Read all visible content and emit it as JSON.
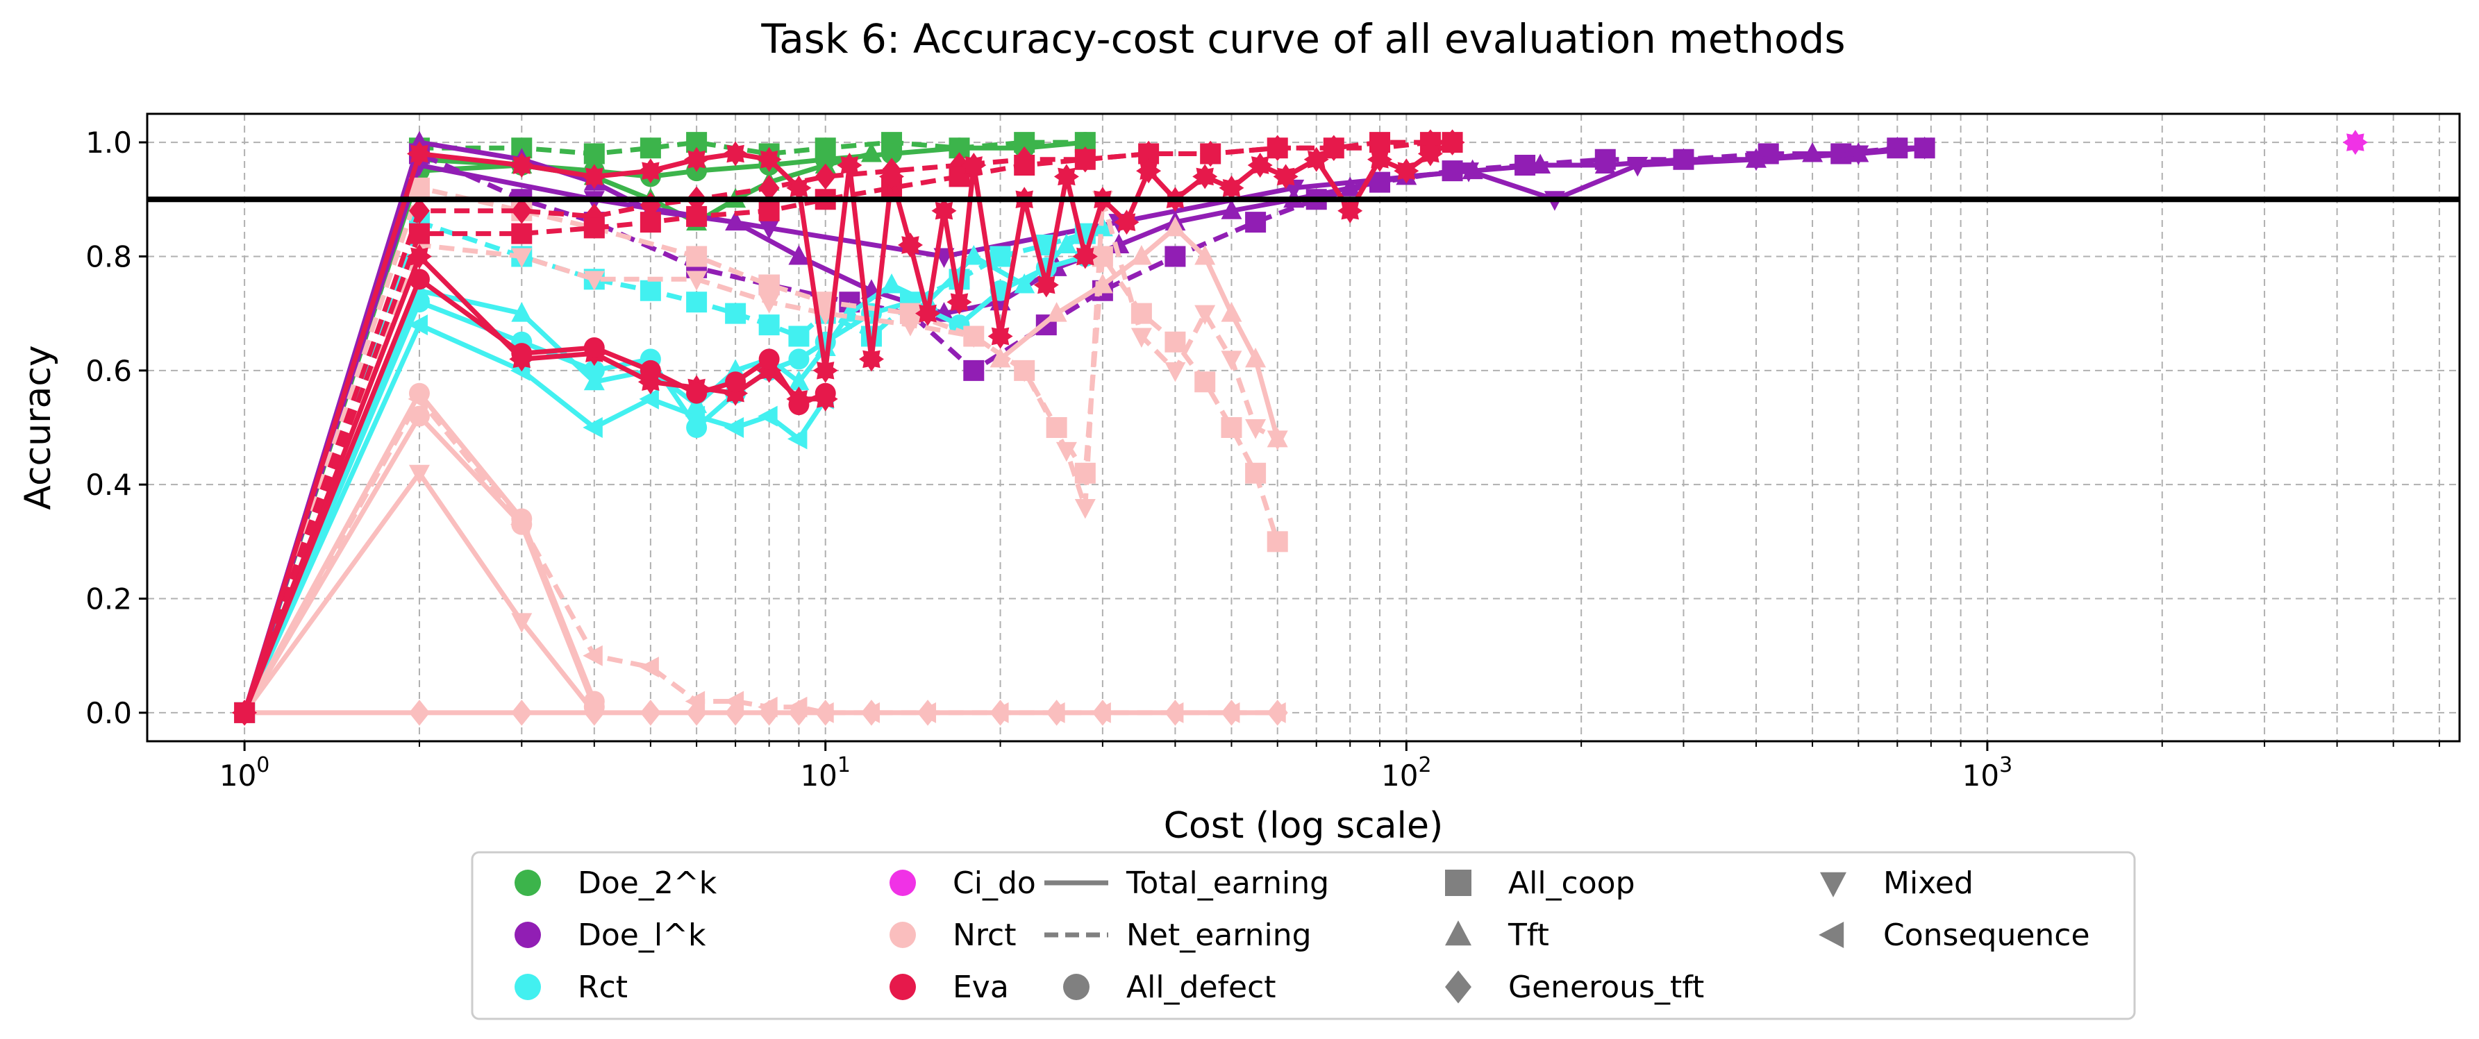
{
  "chart_data": {
    "type": "line",
    "title": "Task 6: Accuracy-cost curve of all evaluation methods",
    "xlabel": "Cost (log scale)",
    "ylabel": "Accuracy",
    "xscale": "log",
    "xlim": [
      0.68,
      6500
    ],
    "ylim": [
      -0.05,
      1.05
    ],
    "x_ticks": [
      {
        "value": 1,
        "label": "10",
        "exp": "0"
      },
      {
        "value": 10,
        "label": "10",
        "exp": "1"
      },
      {
        "value": 100,
        "label": "10",
        "exp": "2"
      },
      {
        "value": 1000,
        "label": "10",
        "exp": "3"
      }
    ],
    "y_ticks": [
      {
        "value": 0.0,
        "label": "0.0"
      },
      {
        "value": 0.2,
        "label": "0.2"
      },
      {
        "value": 0.4,
        "label": "0.4"
      },
      {
        "value": 0.6,
        "label": "0.6"
      },
      {
        "value": 0.8,
        "label": "0.8"
      },
      {
        "value": 1.0,
        "label": "1.0"
      }
    ],
    "grid": true,
    "threshold_line": {
      "y": 0.9,
      "color": "#000000"
    },
    "methods": [
      {
        "name": "Doe_2^k",
        "color": "#3cb44b"
      },
      {
        "name": "Doe_l^k",
        "color": "#911eb4"
      },
      {
        "name": "Rct",
        "color": "#42f0f0"
      },
      {
        "name": "Ci_do",
        "color": "#f032e6"
      },
      {
        "name": "Nrct",
        "color": "#fabebe"
      },
      {
        "name": "Eva",
        "color": "#e6194b"
      }
    ],
    "line_styles": [
      {
        "name": "Total_earning",
        "style": "solid"
      },
      {
        "name": "Net_earning",
        "style": "dashed"
      }
    ],
    "strategies": [
      {
        "name": "All_defect",
        "marker": "circle"
      },
      {
        "name": "All_coop",
        "marker": "square"
      },
      {
        "name": "Tft",
        "marker": "triangle-up"
      },
      {
        "name": "Generous_tft",
        "marker": "diamond"
      },
      {
        "name": "Mixed",
        "marker": "triangle-down"
      },
      {
        "name": "Consequence",
        "marker": "triangle-left"
      }
    ],
    "series": [
      {
        "name": "Doe_2^k Net_earning",
        "method": "Doe_2^k",
        "style": "dashed",
        "marker": "square",
        "x": [
          1,
          2,
          3,
          4,
          5,
          6,
          8,
          10,
          13,
          17,
          22,
          28
        ],
        "y": [
          0,
          0.99,
          0.99,
          0.98,
          0.99,
          1.0,
          0.98,
          0.99,
          1.0,
          0.99,
          1.0,
          1.0
        ]
      },
      {
        "name": "Doe_2^k Total_earning",
        "method": "Doe_2^k",
        "style": "solid",
        "marker": "circle",
        "x": [
          1,
          2,
          3,
          4,
          5,
          6,
          8,
          10,
          13,
          17,
          22,
          28
        ],
        "y": [
          0,
          0.95,
          0.96,
          0.95,
          0.94,
          0.95,
          0.96,
          0.97,
          0.98,
          0.99,
          0.99,
          1.0
        ]
      },
      {
        "name": "Doe_2^k Total_earning (Tft)",
        "method": "Doe_2^k",
        "style": "solid",
        "marker": "triangle-up",
        "x": [
          1,
          2,
          3,
          4,
          5,
          6,
          7,
          8,
          10,
          12
        ],
        "y": [
          0,
          0.97,
          0.96,
          0.94,
          0.9,
          0.86,
          0.9,
          0.93,
          0.96,
          0.98
        ]
      },
      {
        "name": "Doe_l^k Total_earning",
        "method": "Doe_l^k",
        "style": "solid",
        "marker": "triangle-up",
        "x": [
          1,
          2,
          3,
          4,
          5,
          7,
          9,
          12,
          16,
          20,
          25,
          32,
          40,
          50,
          64,
          80,
          100,
          130,
          170,
          220,
          300,
          400,
          500,
          600,
          700,
          780
        ],
        "y": [
          0,
          1.0,
          0.97,
          0.93,
          0.88,
          0.86,
          0.8,
          0.74,
          0.7,
          0.72,
          0.78,
          0.82,
          0.86,
          0.88,
          0.9,
          0.92,
          0.94,
          0.95,
          0.96,
          0.96,
          0.97,
          0.97,
          0.98,
          0.98,
          0.99,
          0.99
        ]
      },
      {
        "name": "Doe_l^k Net_earning",
        "method": "Doe_l^k",
        "style": "dashed",
        "marker": "square",
        "x": [
          1,
          2,
          3,
          4,
          6,
          8,
          11,
          14,
          18,
          24,
          30,
          40,
          55,
          70,
          90,
          120,
          160,
          220,
          300,
          420,
          560,
          700,
          780
        ],
        "y": [
          0,
          0.98,
          0.9,
          0.86,
          0.78,
          0.75,
          0.72,
          0.7,
          0.6,
          0.68,
          0.74,
          0.8,
          0.86,
          0.9,
          0.93,
          0.95,
          0.96,
          0.97,
          0.97,
          0.98,
          0.98,
          0.99,
          0.99
        ]
      },
      {
        "name": "Doe_l^k Total_earning (Mixed)",
        "method": "Doe_l^k",
        "style": "solid",
        "marker": "triangle-down",
        "x": [
          1,
          2,
          4,
          8,
          16,
          32,
          64,
          128,
          180,
          250,
          400,
          600,
          780
        ],
        "y": [
          0,
          0.96,
          0.9,
          0.85,
          0.8,
          0.86,
          0.92,
          0.95,
          0.9,
          0.96,
          0.97,
          0.98,
          0.99
        ]
      },
      {
        "name": "Rct Total_earning",
        "method": "Rct",
        "style": "solid",
        "marker": "triangle-left",
        "x": [
          1,
          2,
          3,
          4,
          5,
          6,
          7,
          8,
          9,
          10
        ],
        "y": [
          0,
          0.68,
          0.6,
          0.5,
          0.55,
          0.52,
          0.5,
          0.52,
          0.48,
          0.55
        ]
      },
      {
        "name": "Rct Total_earning (All_defect)",
        "method": "Rct",
        "style": "solid",
        "marker": "circle",
        "x": [
          1,
          2,
          3,
          4,
          5,
          6,
          7,
          8,
          9,
          10,
          12,
          14,
          17,
          20,
          24,
          28
        ],
        "y": [
          0,
          0.72,
          0.65,
          0.6,
          0.62,
          0.5,
          0.56,
          0.6,
          0.62,
          0.65,
          0.7,
          0.72,
          0.68,
          0.74,
          0.78,
          0.8
        ]
      },
      {
        "name": "Rct Net_earning",
        "method": "Rct",
        "style": "dashed",
        "marker": "square",
        "x": [
          1,
          2,
          3,
          4,
          5,
          6,
          7,
          8,
          9,
          10,
          12,
          14,
          17,
          20,
          24,
          28
        ],
        "y": [
          0,
          0.86,
          0.8,
          0.76,
          0.74,
          0.72,
          0.7,
          0.68,
          0.66,
          0.7,
          0.66,
          0.72,
          0.76,
          0.8,
          0.82,
          0.84
        ]
      },
      {
        "name": "Rct Total_earning (Tft)",
        "method": "Rct",
        "style": "solid",
        "marker": "triangle-up",
        "x": [
          1,
          2,
          3,
          4,
          5,
          6,
          7,
          8,
          9,
          10,
          11,
          13,
          15,
          18,
          22,
          26,
          30
        ],
        "y": [
          0,
          0.74,
          0.7,
          0.58,
          0.6,
          0.54,
          0.6,
          0.62,
          0.58,
          0.64,
          0.7,
          0.75,
          0.72,
          0.8,
          0.75,
          0.82,
          0.85
        ]
      },
      {
        "name": "Ci_do",
        "method": "Ci_do",
        "style": "solid",
        "marker": "star",
        "x": [
          4300
        ],
        "y": [
          1.0
        ]
      },
      {
        "name": "Nrct Total_earning (All_defect)",
        "method": "Nrct",
        "style": "solid",
        "marker": "circle",
        "x": [
          1,
          2,
          3,
          4
        ],
        "y": [
          0,
          0.56,
          0.34,
          0.02
        ]
      },
      {
        "name": "Nrct Total_earning (Tft)",
        "method": "Nrct",
        "style": "solid",
        "marker": "triangle-down",
        "x": [
          1,
          2,
          3,
          4
        ],
        "y": [
          0,
          0.42,
          0.16,
          0.0
        ]
      },
      {
        "name": "Nrct Total_earning",
        "method": "Nrct",
        "style": "solid",
        "marker": "circle",
        "x": [
          1,
          2,
          3,
          4
        ],
        "y": [
          0,
          0.52,
          0.33,
          0.01
        ]
      },
      {
        "name": "Nrct Net_earning (Consequence)",
        "method": "Nrct",
        "style": "dashed",
        "marker": "triangle-left",
        "x": [
          1,
          2,
          3,
          4,
          5,
          6,
          7,
          8,
          9,
          10,
          12,
          15,
          20,
          25,
          30,
          40,
          50,
          60
        ],
        "y": [
          0,
          0.55,
          0.33,
          0.1,
          0.08,
          0.02,
          0.02,
          0.01,
          0.01,
          0.0,
          0.0,
          0.0,
          0.0,
          0.0,
          0.0,
          0.0,
          0.0,
          0.0
        ]
      },
      {
        "name": "Nrct Total_earning (Generous_tft)",
        "method": "Nrct",
        "style": "solid",
        "marker": "diamond",
        "x": [
          1,
          2,
          3,
          4,
          5,
          6,
          7,
          8,
          9,
          10,
          12,
          15,
          20,
          25,
          30,
          40,
          50,
          60
        ],
        "y": [
          0,
          0.0,
          0.0,
          0.0,
          0.0,
          0.0,
          0.0,
          0.0,
          0.0,
          0.0,
          0.0,
          0.0,
          0.0,
          0.0,
          0.0,
          0.0,
          0.0,
          0.0
        ]
      },
      {
        "name": "Nrct Net_earning (All_coop)",
        "method": "Nrct",
        "style": "dashed",
        "marker": "square",
        "x": [
          1,
          2,
          3,
          4,
          6,
          8,
          10,
          14,
          18,
          22,
          25,
          28,
          30,
          35,
          40,
          45,
          50,
          55,
          60
        ],
        "y": [
          0,
          0.92,
          0.88,
          0.85,
          0.8,
          0.75,
          0.72,
          0.7,
          0.66,
          0.6,
          0.5,
          0.42,
          0.8,
          0.7,
          0.65,
          0.58,
          0.5,
          0.42,
          0.3
        ]
      },
      {
        "name": "Nrct Net_earning (Mixed)",
        "method": "Nrct",
        "style": "dashed",
        "marker": "triangle-down",
        "x": [
          1,
          2,
          3,
          4,
          6,
          8,
          10,
          14,
          18,
          22,
          26,
          28,
          30,
          35,
          40,
          45,
          50,
          55,
          60
        ],
        "y": [
          0,
          0.82,
          0.8,
          0.76,
          0.76,
          0.72,
          0.7,
          0.68,
          0.66,
          0.6,
          0.46,
          0.36,
          0.9,
          0.66,
          0.6,
          0.7,
          0.62,
          0.5,
          0.48
        ]
      },
      {
        "name": "Nrct Total_earning (Tft late)",
        "method": "Nrct",
        "style": "solid",
        "marker": "triangle-up",
        "x": [
          20,
          25,
          30,
          35,
          40,
          45,
          50,
          55,
          60
        ],
        "y": [
          0.62,
          0.7,
          0.75,
          0.8,
          0.85,
          0.8,
          0.7,
          0.62,
          0.48
        ]
      },
      {
        "name": "Eva Total_earning",
        "method": "Eva",
        "style": "solid",
        "marker": "star",
        "x": [
          1,
          2,
          3,
          4,
          5,
          6,
          7,
          8,
          9,
          10
        ],
        "y": [
          0,
          0.8,
          0.62,
          0.63,
          0.58,
          0.57,
          0.56,
          0.6,
          0.55,
          0.55
        ]
      },
      {
        "name": "Eva Total_earning (All_defect)",
        "method": "Eva",
        "style": "solid",
        "marker": "circle",
        "x": [
          1,
          2,
          3,
          4,
          5,
          6,
          7,
          8,
          9,
          10
        ],
        "y": [
          0,
          0.76,
          0.63,
          0.64,
          0.6,
          0.56,
          0.58,
          0.62,
          0.54,
          0.56
        ]
      },
      {
        "name": "Eva Net_earning",
        "method": "Eva",
        "style": "dashed",
        "marker": "diamond",
        "x": [
          1,
          2,
          3,
          4,
          5,
          6,
          8,
          10,
          13,
          17,
          22,
          28,
          36,
          46,
          60,
          75,
          90,
          110,
          120
        ],
        "y": [
          0,
          0.88,
          0.88,
          0.87,
          0.89,
          0.9,
          0.92,
          0.94,
          0.95,
          0.96,
          0.97,
          0.97,
          0.98,
          0.98,
          0.99,
          0.99,
          0.99,
          1.0,
          1.0
        ]
      },
      {
        "name": "Eva Net_earning (All_coop)",
        "method": "Eva",
        "style": "dashed",
        "marker": "square",
        "x": [
          1,
          2,
          3,
          4,
          5,
          6,
          8,
          10,
          13,
          17,
          22,
          28,
          36,
          46,
          60,
          75,
          90,
          110,
          120
        ],
        "y": [
          0,
          0.84,
          0.84,
          0.85,
          0.86,
          0.87,
          0.88,
          0.9,
          0.92,
          0.94,
          0.96,
          0.97,
          0.98,
          0.98,
          0.99,
          0.99,
          1.0,
          1.0,
          1.0
        ]
      },
      {
        "name": "Eva Total_earning (Consequence)",
        "method": "Eva",
        "style": "solid",
        "marker": "star",
        "x": [
          1,
          2,
          3,
          4,
          5,
          6,
          7,
          8,
          9,
          10,
          11,
          12,
          13,
          14,
          15,
          16,
          17,
          18,
          20,
          22,
          24,
          26,
          28,
          30,
          33,
          36,
          40,
          45,
          50,
          56,
          62,
          70,
          80,
          90,
          100,
          110,
          120
        ],
        "y": [
          0,
          0.98,
          0.96,
          0.94,
          0.95,
          0.97,
          0.98,
          0.97,
          0.92,
          0.6,
          0.96,
          0.62,
          0.94,
          0.82,
          0.7,
          0.88,
          0.72,
          0.96,
          0.66,
          0.9,
          0.75,
          0.94,
          0.8,
          0.9,
          0.86,
          0.95,
          0.9,
          0.94,
          0.92,
          0.96,
          0.94,
          0.97,
          0.88,
          0.97,
          0.95,
          0.98,
          1.0
        ]
      }
    ]
  }
}
